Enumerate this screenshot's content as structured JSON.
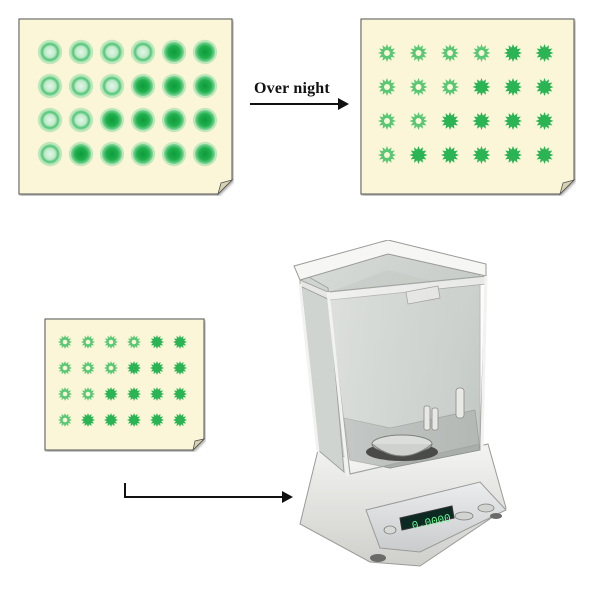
{
  "arrow_label": "Over night",
  "plates": [
    {
      "id": "plate-fresh",
      "state": "fresh-spots",
      "rows": 4,
      "cols": 6,
      "paper_color": "#fbf6d8",
      "spots": [
        [
          "light",
          "light",
          "light",
          "light",
          "dark",
          "dark"
        ],
        [
          "light",
          "light",
          "light",
          "dark",
          "dark",
          "dark"
        ],
        [
          "light",
          "light",
          "dark",
          "dark",
          "dark",
          "dark"
        ],
        [
          "light",
          "dark",
          "dark",
          "dark",
          "dark",
          "dark"
        ]
      ]
    },
    {
      "id": "plate-dried",
      "state": "dried-spots",
      "rows": 4,
      "cols": 6,
      "paper_color": "#fbf6d8",
      "spots": [
        [
          "ring",
          "ring",
          "ring",
          "ring",
          "solid",
          "solid"
        ],
        [
          "ring",
          "ring",
          "ring",
          "solid",
          "solid",
          "solid"
        ],
        [
          "ring",
          "ring",
          "solid",
          "solid",
          "solid",
          "solid"
        ],
        [
          "ring",
          "solid",
          "solid",
          "solid",
          "solid",
          "solid"
        ]
      ]
    },
    {
      "id": "plate-small",
      "state": "dried-spots",
      "rows": 4,
      "cols": 6,
      "paper_color": "#fbf6d8",
      "spots": [
        [
          "ring",
          "ring",
          "ring",
          "ring",
          "solid",
          "solid"
        ],
        [
          "ring",
          "ring",
          "ring",
          "solid",
          "solid",
          "solid"
        ],
        [
          "ring",
          "ring",
          "solid",
          "solid",
          "solid",
          "solid"
        ],
        [
          "ring",
          "solid",
          "solid",
          "solid",
          "solid",
          "solid"
        ]
      ]
    }
  ],
  "balance": {
    "display": "0.0000"
  },
  "colors": {
    "spot_dark": "#1fb04c",
    "spot_light_fill": "#bfe8c8",
    "spot_halo": "#8fdaa4",
    "arrow": "#111111"
  }
}
